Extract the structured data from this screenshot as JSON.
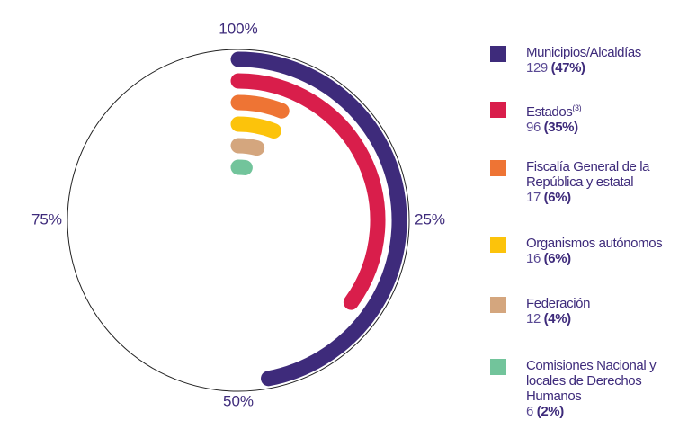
{
  "chart_data": {
    "type": "radial_bar",
    "categories": [
      "Municipios/Alcaldías",
      "Estados",
      "Fiscalía General de la República y estatal",
      "Organismos autónomos",
      "Federación",
      "Comisiones Nacional y locales de Derechos Humanos"
    ],
    "footnotes": {
      "1": "(3)"
    },
    "counts": [
      129,
      96,
      17,
      16,
      12,
      6
    ],
    "values": [
      47,
      35,
      6,
      6,
      4,
      2
    ],
    "value_labels": [
      "(47%)",
      "(35%)",
      "(6%)",
      "(6%)",
      "(4%)",
      "(2%)"
    ],
    "colors": [
      "#3e2b7b",
      "#d91e4b",
      "#ee7434",
      "#fcc30b",
      "#d4a67e",
      "#72c49b"
    ],
    "range": [
      0,
      100
    ],
    "ticks": [
      {
        "value": 100,
        "label": "100%"
      },
      {
        "value": 25,
        "label": "25%"
      },
      {
        "value": 50,
        "label": "50%"
      },
      {
        "value": 75,
        "label": "75%"
      }
    ]
  }
}
